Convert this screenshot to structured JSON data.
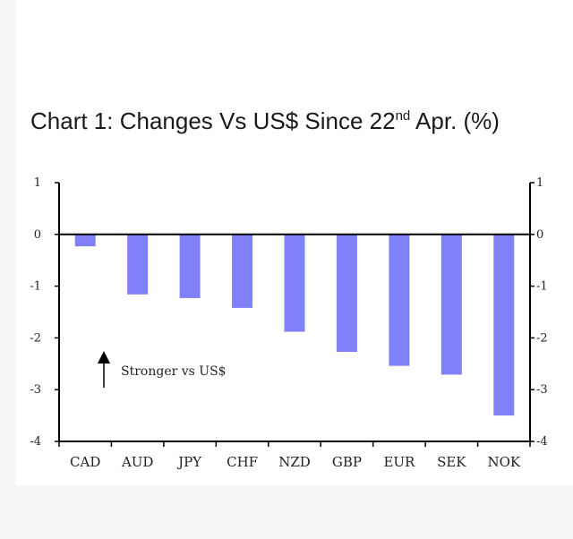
{
  "title": {
    "main": "Chart 1: Changes Vs US$ Since 22",
    "sup": "nd",
    "rest": " Apr. (%)"
  },
  "chart_data": {
    "type": "bar",
    "title": "Chart 1: Changes Vs US$ Since 22nd Apr. (%)",
    "categories": [
      "CAD",
      "AUD",
      "JPY",
      "CHF",
      "NZD",
      "GBP",
      "EUR",
      "SEK",
      "NOK"
    ],
    "values": [
      -0.23,
      -1.16,
      -1.23,
      -1.42,
      -1.88,
      -2.27,
      -2.54,
      -2.71,
      -3.5
    ],
    "ylim": [
      -4,
      1
    ],
    "yticks": [
      "1",
      "0",
      "-1",
      "-2",
      "-3",
      "-4"
    ],
    "ytick_values": [
      1,
      0,
      -1,
      -2,
      -3,
      -4
    ],
    "bar_color": "#8080f8",
    "axis_color": "#000000",
    "grid": false,
    "annotation": "Stronger vs US$"
  }
}
